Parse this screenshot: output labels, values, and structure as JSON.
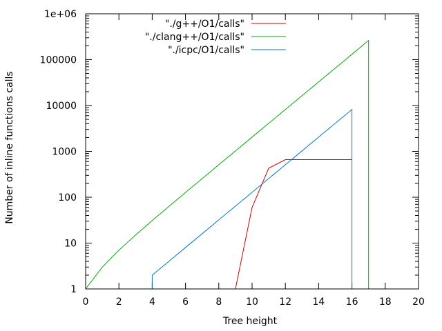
{
  "chart_data": {
    "type": "line",
    "xlabel": "Tree height",
    "ylabel": "Number of inline functions calls",
    "xlim": [
      0,
      20
    ],
    "ylim": [
      1,
      1000000
    ],
    "yscale": "log",
    "grid": false,
    "legend_position": "top-right",
    "x_ticks": [
      0,
      2,
      4,
      6,
      8,
      10,
      12,
      14,
      16,
      18,
      20
    ],
    "x_tick_labels": [
      "0",
      "2",
      "4",
      "6",
      "8",
      "10",
      "12",
      "14",
      "16",
      "18",
      "20"
    ],
    "y_ticks": [
      1,
      10,
      100,
      1000,
      10000,
      100000,
      1000000
    ],
    "y_tick_labels": [
      "1",
      "10",
      "100",
      "1000",
      "10000",
      "100000",
      "1e+06"
    ],
    "series": [
      {
        "name": "\"./g++/O1/calls\"",
        "color": "#cc0000",
        "points": [
          [
            9,
            1
          ],
          [
            10,
            60
          ],
          [
            11,
            430
          ],
          [
            12,
            660
          ],
          [
            13,
            660
          ],
          [
            14,
            660
          ],
          [
            15,
            660
          ],
          [
            16,
            660
          ]
        ]
      },
      {
        "name": "\"./clang++/O1/calls\"",
        "color": "#00aa00",
        "points": [
          [
            0,
            1
          ],
          [
            1,
            3
          ],
          [
            2,
            7
          ],
          [
            3,
            15
          ],
          [
            4,
            31
          ],
          [
            5,
            63
          ],
          [
            6,
            127
          ],
          [
            7,
            255
          ],
          [
            8,
            511
          ],
          [
            9,
            1023
          ],
          [
            10,
            2047
          ],
          [
            11,
            4095
          ],
          [
            12,
            8191
          ],
          [
            13,
            16383
          ],
          [
            14,
            32767
          ],
          [
            15,
            65535
          ],
          [
            16,
            131071
          ],
          [
            17,
            262143
          ],
          [
            17,
            1
          ]
        ]
      },
      {
        "name": "\"./icpc/O1/calls\"",
        "color": "#0077cc",
        "points": [
          [
            4,
            1
          ],
          [
            4,
            2
          ],
          [
            5,
            4
          ],
          [
            6,
            8
          ],
          [
            7,
            16
          ],
          [
            8,
            32
          ],
          [
            9,
            64
          ],
          [
            10,
            128
          ],
          [
            11,
            256
          ],
          [
            12,
            512
          ],
          [
            13,
            1024
          ],
          [
            14,
            2048
          ],
          [
            15,
            4096
          ],
          [
            16,
            8192
          ],
          [
            16,
            1
          ]
        ]
      }
    ]
  }
}
